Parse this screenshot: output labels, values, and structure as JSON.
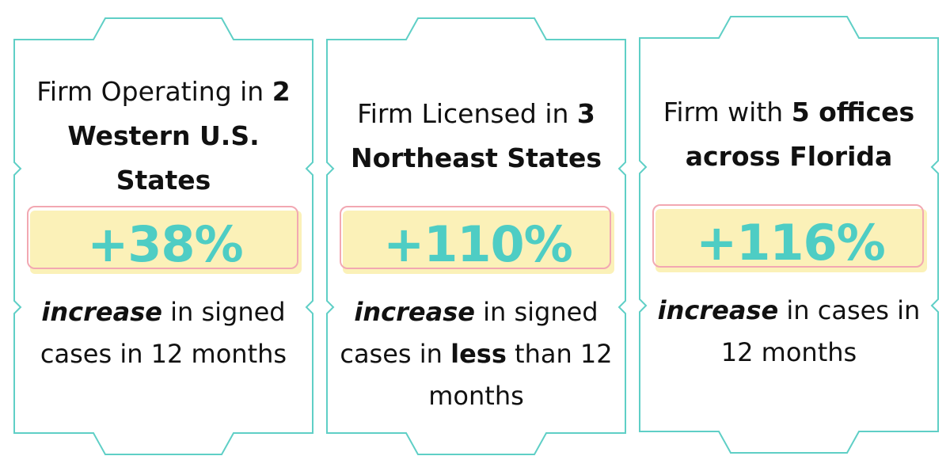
{
  "cards": [
    {
      "heading": [
        {
          "text": "Firm Operating in",
          "style": "normal"
        },
        {
          "text": "2 Western U.S. States",
          "style": "bold"
        }
      ],
      "stat": "+38%",
      "description": [
        {
          "text": "increase",
          "style": "bold-italic"
        },
        {
          "text": "in signed cases in 12 months",
          "style": "normal"
        }
      ]
    },
    {
      "heading": [
        {
          "text": "Firm Licensed in",
          "style": "normal"
        },
        {
          "text": "3 Northeast States",
          "style": "bold"
        }
      ],
      "stat": "+110%",
      "description": [
        {
          "text": "increase",
          "style": "bold-italic"
        },
        {
          "text": "in signed cases in",
          "style": "normal"
        },
        {
          "text": "less",
          "style": "bold"
        },
        {
          "text": "than 12 months",
          "style": "normal"
        }
      ]
    },
    {
      "heading": [
        {
          "text": "Firm with",
          "style": "normal"
        },
        {
          "text": "5 offices across Florida",
          "style": "bold"
        }
      ],
      "stat": "+116%",
      "description": [
        {
          "text": "increase",
          "style": "bold-italic"
        },
        {
          "text": "in cases in 12 months",
          "style": "normal"
        }
      ]
    }
  ]
}
